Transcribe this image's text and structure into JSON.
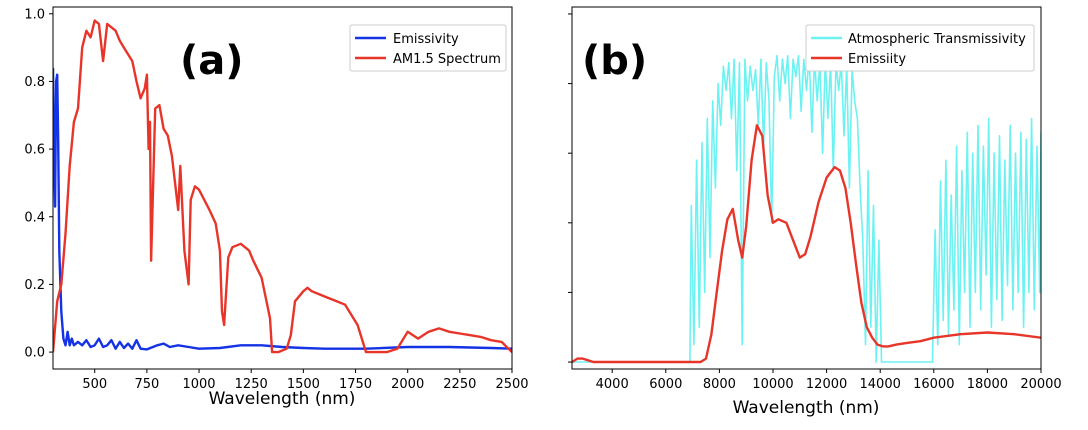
{
  "chart_data": [
    {
      "type": "line",
      "panel_label": "(a)",
      "xlabel": "Wavelength (nm)",
      "ylabel": "",
      "xlim": [
        300,
        2500
      ],
      "ylim": [
        -0.05,
        1.02
      ],
      "xticks": [
        500,
        750,
        1000,
        1250,
        1500,
        1750,
        2000,
        2250,
        2500
      ],
      "yticks": [
        0.0,
        0.2,
        0.4,
        0.6,
        0.8,
        1.0
      ],
      "xtick_labels": [
        "500",
        "750",
        "1000",
        "1250",
        "1500",
        "1750",
        "2000",
        "2250",
        "2500"
      ],
      "ytick_labels": [
        "0.0",
        "0.2",
        "0.4",
        "0.6",
        "0.8",
        "1.0"
      ],
      "legend_position": "top-right",
      "grid": false,
      "series": [
        {
          "name": "Emissivity",
          "color": "#1432e6",
          "x": [
            300,
            305,
            310,
            315,
            320,
            325,
            330,
            340,
            350,
            360,
            370,
            380,
            390,
            400,
            420,
            440,
            460,
            480,
            500,
            520,
            540,
            560,
            580,
            600,
            620,
            640,
            660,
            680,
            700,
            720,
            750,
            800,
            830,
            860,
            900,
            950,
            1000,
            1100,
            1200,
            1300,
            1400,
            1500,
            1600,
            1800,
            2000,
            2200,
            2400,
            2500
          ],
          "y": [
            0.84,
            0.6,
            0.43,
            0.8,
            0.82,
            0.62,
            0.3,
            0.12,
            0.04,
            0.02,
            0.06,
            0.02,
            0.04,
            0.02,
            0.03,
            0.02,
            0.035,
            0.015,
            0.02,
            0.04,
            0.015,
            0.02,
            0.035,
            0.01,
            0.03,
            0.012,
            0.025,
            0.01,
            0.035,
            0.01,
            0.008,
            0.02,
            0.025,
            0.015,
            0.02,
            0.015,
            0.01,
            0.012,
            0.02,
            0.02,
            0.015,
            0.012,
            0.01,
            0.01,
            0.015,
            0.015,
            0.012,
            0.01
          ]
        },
        {
          "name": "AM1.5 Spectrum",
          "color": "#e8352a",
          "x": [
            300,
            320,
            340,
            360,
            380,
            400,
            420,
            440,
            460,
            480,
            500,
            520,
            540,
            560,
            580,
            600,
            620,
            640,
            660,
            680,
            700,
            720,
            740,
            750,
            758,
            765,
            770,
            790,
            810,
            830,
            850,
            870,
            900,
            910,
            930,
            950,
            960,
            980,
            1000,
            1050,
            1080,
            1100,
            1110,
            1120,
            1140,
            1160,
            1200,
            1240,
            1260,
            1300,
            1340,
            1350,
            1380,
            1420,
            1440,
            1460,
            1500,
            1520,
            1540,
            1580,
            1620,
            1660,
            1700,
            1760,
            1800,
            1820,
            1850,
            1900,
            1950,
            1980,
            2000,
            2050,
            2100,
            2150,
            2200,
            2250,
            2300,
            2350,
            2400,
            2450,
            2500
          ],
          "y": [
            0.0,
            0.15,
            0.2,
            0.35,
            0.55,
            0.68,
            0.72,
            0.9,
            0.95,
            0.93,
            0.98,
            0.97,
            0.86,
            0.97,
            0.96,
            0.95,
            0.92,
            0.9,
            0.88,
            0.86,
            0.8,
            0.75,
            0.78,
            0.82,
            0.6,
            0.68,
            0.27,
            0.72,
            0.73,
            0.66,
            0.64,
            0.58,
            0.42,
            0.55,
            0.3,
            0.2,
            0.45,
            0.49,
            0.48,
            0.42,
            0.38,
            0.3,
            0.12,
            0.08,
            0.28,
            0.31,
            0.32,
            0.3,
            0.27,
            0.22,
            0.1,
            0.0,
            0.0,
            0.01,
            0.05,
            0.15,
            0.18,
            0.19,
            0.18,
            0.17,
            0.16,
            0.15,
            0.14,
            0.08,
            0.0,
            0.0,
            0.0,
            0.0,
            0.01,
            0.04,
            0.06,
            0.04,
            0.06,
            0.07,
            0.06,
            0.055,
            0.05,
            0.045,
            0.035,
            0.03,
            0.0
          ]
        }
      ]
    },
    {
      "type": "line",
      "panel_label": "(b)",
      "xlabel": "Wavelength (nm)",
      "ylabel": "",
      "xlim": [
        2500,
        20000
      ],
      "ylim": [
        -0.02,
        1.02
      ],
      "xticks": [
        4000,
        6000,
        8000,
        10000,
        12000,
        14000,
        16000,
        18000,
        20000
      ],
      "xtick_labels": [
        "4000",
        "6000",
        "8000",
        "10000",
        "12000",
        "14000",
        "16000",
        "18000",
        "20000"
      ],
      "legend_position": "top-right",
      "grid": false,
      "series": [
        {
          "name": "Atmospheric Transmissivity",
          "color": "#6df2f2",
          "x": [
            2500,
            6900,
            6950,
            7050,
            7150,
            7250,
            7350,
            7450,
            7550,
            7650,
            7750,
            7850,
            7950,
            8050,
            8150,
            8250,
            8350,
            8450,
            8550,
            8650,
            8750,
            8850,
            8950,
            9050,
            9150,
            9250,
            9350,
            9450,
            9550,
            9650,
            9750,
            9850,
            9950,
            10050,
            10150,
            10250,
            10350,
            10450,
            10550,
            10650,
            10750,
            10850,
            10950,
            11050,
            11150,
            11250,
            11350,
            11450,
            11550,
            11650,
            11750,
            11850,
            11950,
            12050,
            12150,
            12250,
            12350,
            12450,
            12550,
            12650,
            12750,
            12850,
            12950,
            13050,
            13150,
            13250,
            13350,
            13450,
            13550,
            13650,
            13750,
            13850,
            13950,
            14050,
            14200,
            15950,
            16050,
            16150,
            16250,
            16350,
            16450,
            16550,
            16650,
            16750,
            16850,
            16950,
            17050,
            17150,
            17250,
            17350,
            17450,
            17550,
            17650,
            17750,
            17850,
            17950,
            18050,
            18150,
            18250,
            18350,
            18450,
            18550,
            18650,
            18750,
            18850,
            18950,
            19050,
            19150,
            19250,
            19350,
            19450,
            19550,
            19650,
            19750,
            19850,
            19950,
            20000
          ],
          "y": [
            0.0,
            0.0,
            0.45,
            0.05,
            0.58,
            0.1,
            0.63,
            0.2,
            0.7,
            0.3,
            0.75,
            0.5,
            0.8,
            0.68,
            0.85,
            0.78,
            0.86,
            0.7,
            0.87,
            0.55,
            0.86,
            0.05,
            0.87,
            0.75,
            0.85,
            0.78,
            0.84,
            0.68,
            0.87,
            0.62,
            0.86,
            0.75,
            0.4,
            0.82,
            0.88,
            0.75,
            0.87,
            0.8,
            0.88,
            0.7,
            0.87,
            0.82,
            0.88,
            0.72,
            0.87,
            0.78,
            0.88,
            0.66,
            0.87,
            0.75,
            0.86,
            0.6,
            0.87,
            0.7,
            0.86,
            0.55,
            0.86,
            0.78,
            0.86,
            0.65,
            0.85,
            0.5,
            0.84,
            0.75,
            0.7,
            0.5,
            0.35,
            0.05,
            0.55,
            0.1,
            0.45,
            0.0,
            0.35,
            0.0,
            0.0,
            0.0,
            0.38,
            0.05,
            0.52,
            0.12,
            0.58,
            0.08,
            0.48,
            0.15,
            0.62,
            0.05,
            0.55,
            0.2,
            0.66,
            0.1,
            0.6,
            0.2,
            0.68,
            0.15,
            0.62,
            0.25,
            0.7,
            0.1,
            0.6,
            0.18,
            0.65,
            0.12,
            0.58,
            0.22,
            0.68,
            0.15,
            0.6,
            0.2,
            0.66,
            0.1,
            0.64,
            0.2,
            0.7,
            0.15,
            0.62,
            0.2,
            0.66
          ]
        },
        {
          "name": "Emissiity",
          "color": "#e8352a",
          "x": [
            2500,
            2700,
            2900,
            3100,
            3300,
            3500,
            4000,
            5000,
            6000,
            6500,
            7000,
            7300,
            7500,
            7700,
            7900,
            8100,
            8300,
            8500,
            8700,
            8850,
            9000,
            9200,
            9400,
            9600,
            9800,
            10000,
            10200,
            10500,
            10800,
            11000,
            11200,
            11400,
            11700,
            12000,
            12300,
            12500,
            12700,
            12900,
            13100,
            13300,
            13500,
            13700,
            13900,
            14100,
            14300,
            14600,
            15000,
            15500,
            16000,
            17000,
            18000,
            19000,
            20000
          ],
          "y": [
            0.0,
            0.01,
            0.01,
            0.005,
            0.0,
            0.0,
            0.0,
            0.0,
            0.0,
            0.0,
            0.0,
            0.0,
            0.01,
            0.08,
            0.2,
            0.32,
            0.41,
            0.44,
            0.35,
            0.3,
            0.39,
            0.58,
            0.68,
            0.65,
            0.48,
            0.4,
            0.41,
            0.4,
            0.34,
            0.3,
            0.31,
            0.36,
            0.46,
            0.53,
            0.56,
            0.55,
            0.5,
            0.4,
            0.28,
            0.17,
            0.1,
            0.07,
            0.05,
            0.045,
            0.045,
            0.05,
            0.055,
            0.06,
            0.07,
            0.08,
            0.085,
            0.08,
            0.07
          ]
        }
      ]
    }
  ]
}
